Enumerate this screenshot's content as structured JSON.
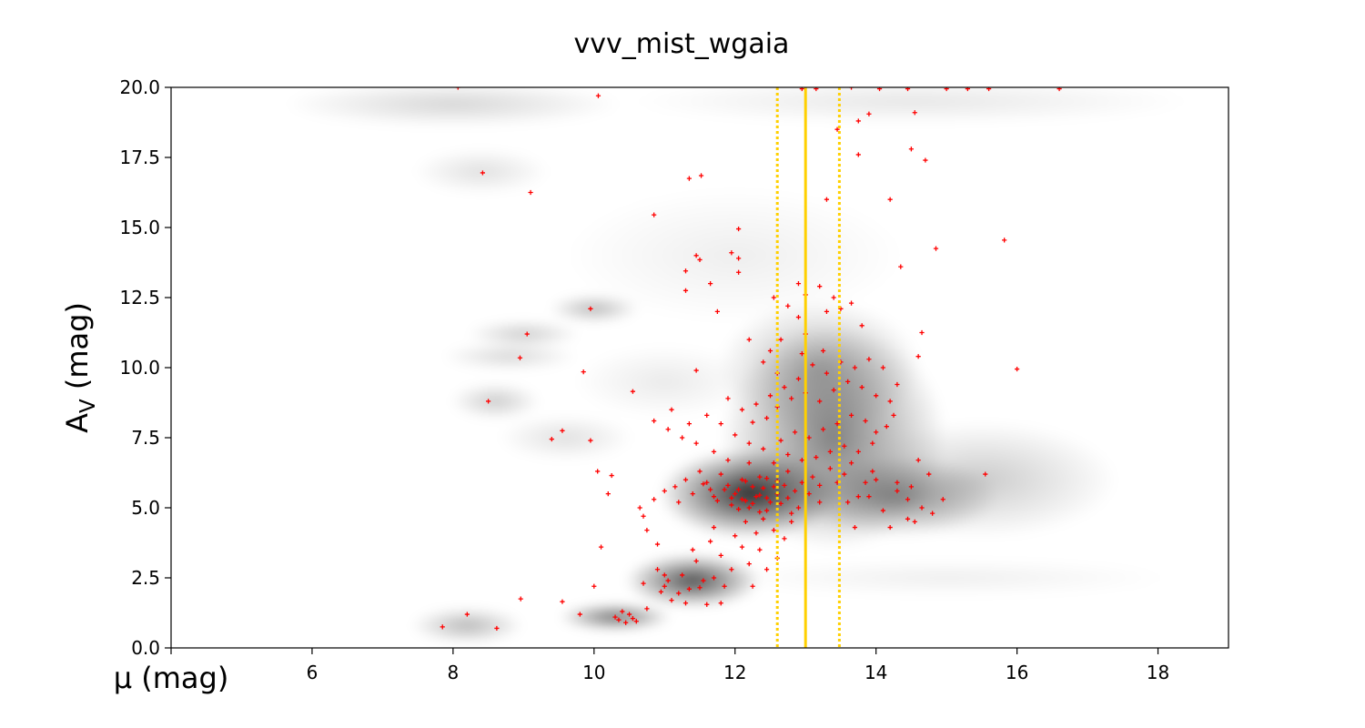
{
  "chart_data": {
    "type": "scatter",
    "title": "vvv_mist_wgaia",
    "xlabel": "μ (mag)",
    "ylabel": "A_V (mag)",
    "xlim": [
      4,
      19
    ],
    "ylim": [
      0,
      20
    ],
    "x_ticks": [
      4,
      6,
      8,
      10,
      12,
      14,
      16,
      18
    ],
    "x_tick_labels": [
      "",
      "6",
      "8",
      "10",
      "12",
      "14",
      "16",
      "18"
    ],
    "y_ticks": [
      0,
      2.5,
      5,
      7.5,
      10,
      12.5,
      15,
      17.5,
      20
    ],
    "y_tick_labels": [
      "0.0",
      "2.5",
      "5.0",
      "7.5",
      "10.0",
      "12.5",
      "15.0",
      "17.5",
      "20.0"
    ],
    "grid": false,
    "background_density": {
      "colormap": "greys",
      "blobs": [
        {
          "x": 12.2,
          "y": 5.5,
          "sx": 0.8,
          "sy": 1.0,
          "w": 1.0
        },
        {
          "x": 11.4,
          "y": 2.4,
          "sx": 0.6,
          "sy": 0.6,
          "w": 0.85
        },
        {
          "x": 13.4,
          "y": 7.5,
          "sx": 1.0,
          "sy": 2.5,
          "w": 0.6
        },
        {
          "x": 14.3,
          "y": 5.4,
          "sx": 0.9,
          "sy": 0.9,
          "w": 0.5
        },
        {
          "x": 13.2,
          "y": 10.0,
          "sx": 0.9,
          "sy": 1.5,
          "w": 0.35
        },
        {
          "x": 10.3,
          "y": 1.1,
          "sx": 0.5,
          "sy": 0.3,
          "w": 0.7
        },
        {
          "x": 8.2,
          "y": 0.8,
          "sx": 0.5,
          "sy": 0.4,
          "w": 0.35
        },
        {
          "x": 10.0,
          "y": 12.1,
          "sx": 0.4,
          "sy": 0.3,
          "w": 0.35
        },
        {
          "x": 9.0,
          "y": 11.2,
          "sx": 0.5,
          "sy": 0.3,
          "w": 0.25
        },
        {
          "x": 8.8,
          "y": 10.4,
          "sx": 0.6,
          "sy": 0.3,
          "w": 0.2
        },
        {
          "x": 8.6,
          "y": 8.8,
          "sx": 0.4,
          "sy": 0.4,
          "w": 0.25
        },
        {
          "x": 15.5,
          "y": 6.0,
          "sx": 1.2,
          "sy": 1.3,
          "w": 0.25
        },
        {
          "x": 8.0,
          "y": 19.4,
          "sx": 1.5,
          "sy": 0.5,
          "w": 0.2
        },
        {
          "x": 8.4,
          "y": 17.0,
          "sx": 0.6,
          "sy": 0.5,
          "w": 0.15
        },
        {
          "x": 14.5,
          "y": 19.5,
          "sx": 2.5,
          "sy": 0.5,
          "w": 0.12
        },
        {
          "x": 12.0,
          "y": 14.0,
          "sx": 1.5,
          "sy": 1.5,
          "w": 0.08
        },
        {
          "x": 15.0,
          "y": 2.5,
          "sx": 2.0,
          "sy": 0.4,
          "w": 0.08
        },
        {
          "x": 9.6,
          "y": 7.5,
          "sx": 0.6,
          "sy": 0.5,
          "w": 0.15
        },
        {
          "x": 11.0,
          "y": 9.5,
          "sx": 0.8,
          "sy": 0.8,
          "w": 0.1
        }
      ]
    },
    "reference_lines": [
      {
        "x": 13.0,
        "style": "solid",
        "color": "#FFD000"
      },
      {
        "x": 12.6,
        "style": "dotted",
        "color": "#FFD000"
      },
      {
        "x": 13.48,
        "style": "dotted",
        "color": "#FFD000"
      }
    ],
    "points_color": "#FF0000",
    "points_marker": "+",
    "points": [
      [
        7.85,
        0.75
      ],
      [
        8.2,
        1.2
      ],
      [
        8.62,
        0.7
      ],
      [
        8.96,
        1.75
      ],
      [
        9.55,
        1.65
      ],
      [
        9.8,
        1.2
      ],
      [
        10.0,
        2.2
      ],
      [
        10.1,
        3.6
      ],
      [
        10.3,
        1.1
      ],
      [
        10.35,
        1.0
      ],
      [
        10.4,
        1.3
      ],
      [
        10.45,
        0.9
      ],
      [
        10.5,
        1.2
      ],
      [
        10.55,
        1.05
      ],
      [
        10.6,
        0.95
      ],
      [
        8.07,
        20.0
      ],
      [
        10.06,
        19.7
      ],
      [
        8.42,
        16.95
      ],
      [
        9.1,
        16.25
      ],
      [
        10.85,
        15.45
      ],
      [
        11.35,
        16.75
      ],
      [
        11.52,
        16.85
      ],
      [
        12.05,
        14.95
      ],
      [
        11.45,
        14.0
      ],
      [
        11.5,
        13.85
      ],
      [
        11.3,
        13.45
      ],
      [
        11.3,
        12.75
      ],
      [
        11.75,
        12.0
      ],
      [
        11.65,
        13.0
      ],
      [
        11.95,
        14.1
      ],
      [
        12.05,
        13.9
      ],
      [
        12.05,
        13.4
      ],
      [
        9.95,
        12.1
      ],
      [
        9.05,
        11.2
      ],
      [
        8.95,
        10.35
      ],
      [
        9.85,
        9.85
      ],
      [
        8.5,
        8.8
      ],
      [
        9.4,
        7.45
      ],
      [
        9.55,
        7.75
      ],
      [
        9.95,
        7.4
      ],
      [
        10.05,
        6.3
      ],
      [
        10.25,
        6.15
      ],
      [
        10.2,
        5.5
      ],
      [
        10.55,
        9.15
      ],
      [
        11.45,
        9.9
      ],
      [
        14.2,
        16.0
      ],
      [
        13.3,
        16.0
      ],
      [
        13.45,
        18.5
      ],
      [
        13.75,
        18.8
      ],
      [
        13.9,
        19.05
      ],
      [
        14.55,
        19.1
      ],
      [
        13.75,
        17.6
      ],
      [
        14.5,
        17.8
      ],
      [
        14.7,
        17.4
      ],
      [
        14.45,
        19.95
      ],
      [
        14.05,
        19.95
      ],
      [
        13.65,
        20.0
      ],
      [
        13.15,
        19.95
      ],
      [
        15.0,
        19.95
      ],
      [
        15.3,
        19.95
      ],
      [
        15.6,
        19.95
      ],
      [
        16.6,
        19.95
      ],
      [
        12.95,
        19.95
      ],
      [
        14.85,
        14.25
      ],
      [
        15.82,
        14.55
      ],
      [
        14.35,
        13.6
      ],
      [
        16.0,
        9.95
      ],
      [
        15.55,
        6.2
      ],
      [
        14.65,
        11.25
      ],
      [
        14.6,
        10.4
      ],
      [
        13.2,
        12.9
      ],
      [
        13.0,
        12.6
      ],
      [
        12.9,
        13.0
      ],
      [
        13.4,
        12.5
      ],
      [
        13.65,
        12.3
      ],
      [
        12.75,
        12.2
      ],
      [
        12.9,
        11.8
      ],
      [
        12.55,
        12.5
      ],
      [
        13.3,
        12.0
      ],
      [
        13.5,
        12.1
      ],
      [
        12.2,
        11.0
      ],
      [
        12.5,
        10.6
      ],
      [
        12.65,
        11.0
      ],
      [
        13.0,
        11.2
      ],
      [
        13.8,
        11.5
      ],
      [
        14.6,
        6.7
      ],
      [
        14.75,
        6.2
      ],
      [
        14.65,
        5.0
      ],
      [
        14.95,
        5.3
      ],
      [
        14.8,
        4.8
      ],
      [
        14.2,
        4.3
      ],
      [
        13.7,
        4.3
      ],
      [
        14.45,
        4.6
      ],
      [
        14.3,
        5.9
      ],
      [
        14.0,
        6.0
      ],
      [
        14.45,
        5.3
      ],
      [
        14.1,
        4.9
      ],
      [
        14.55,
        4.5
      ],
      [
        13.9,
        5.4
      ],
      [
        13.6,
        5.2
      ],
      [
        14.3,
        5.6
      ],
      [
        14.5,
        5.75
      ],
      [
        10.65,
        5.0
      ],
      [
        10.75,
        4.2
      ],
      [
        10.9,
        3.7
      ],
      [
        10.7,
        2.3
      ],
      [
        10.95,
        2.0
      ],
      [
        11.1,
        1.7
      ],
      [
        11.3,
        1.6
      ],
      [
        11.6,
        1.55
      ],
      [
        11.8,
        1.6
      ],
      [
        10.75,
        1.4
      ],
      [
        10.9,
        2.8
      ],
      [
        11.0,
        2.2
      ],
      [
        11.2,
        1.95
      ],
      [
        11.35,
        2.1
      ],
      [
        11.5,
        2.15
      ],
      [
        11.05,
        2.4
      ],
      [
        11.25,
        2.6
      ],
      [
        11.7,
        2.5
      ],
      [
        11.95,
        2.8
      ],
      [
        12.2,
        3.0
      ],
      [
        12.35,
        3.5
      ],
      [
        12.6,
        3.2
      ],
      [
        12.45,
        2.8
      ],
      [
        11.85,
        2.2
      ],
      [
        11.55,
        2.4
      ],
      [
        11.0,
        2.6
      ],
      [
        11.45,
        3.1
      ],
      [
        11.8,
        3.3
      ],
      [
        12.1,
        3.6
      ],
      [
        12.3,
        4.1
      ],
      [
        12.55,
        4.2
      ],
      [
        12.4,
        4.6
      ],
      [
        12.0,
        4.0
      ],
      [
        11.65,
        3.8
      ],
      [
        11.4,
        3.5
      ],
      [
        11.7,
        4.3
      ],
      [
        12.15,
        4.5
      ],
      [
        12.7,
        3.9
      ],
      [
        12.8,
        4.5
      ],
      [
        12.25,
        2.2
      ],
      [
        10.7,
        4.7
      ],
      [
        10.85,
        5.3
      ],
      [
        11.0,
        5.6
      ],
      [
        11.2,
        5.2
      ],
      [
        11.4,
        5.5
      ],
      [
        11.6,
        5.9
      ],
      [
        11.8,
        6.2
      ],
      [
        11.9,
        5.8
      ],
      [
        12.0,
        5.5
      ],
      [
        12.1,
        5.3
      ],
      [
        12.2,
        5.0
      ],
      [
        12.3,
        5.4
      ],
      [
        12.4,
        5.7
      ],
      [
        12.5,
        5.2
      ],
      [
        12.6,
        5.5
      ],
      [
        12.7,
        5.8
      ],
      [
        12.1,
        6.0
      ],
      [
        11.95,
        5.1
      ],
      [
        11.7,
        5.4
      ],
      [
        11.5,
        6.3
      ],
      [
        11.3,
        6.0
      ],
      [
        11.15,
        5.75
      ],
      [
        12.45,
        4.9
      ],
      [
        12.6,
        5.95
      ],
      [
        12.35,
        6.1
      ],
      [
        12.75,
        6.3
      ],
      [
        12.85,
        5.6
      ],
      [
        12.95,
        5.9
      ],
      [
        13.1,
        6.1
      ],
      [
        13.2,
        5.8
      ],
      [
        13.35,
        6.4
      ],
      [
        13.45,
        5.9
      ],
      [
        13.55,
        6.2
      ],
      [
        13.65,
        6.6
      ],
      [
        13.75,
        5.4
      ],
      [
        13.85,
        5.9
      ],
      [
        13.95,
        6.3
      ],
      [
        13.2,
        5.2
      ],
      [
        13.05,
        5.5
      ],
      [
        12.9,
        5.0
      ],
      [
        12.8,
        4.8
      ],
      [
        12.55,
        6.6
      ],
      [
        12.2,
        6.6
      ],
      [
        11.9,
        6.7
      ],
      [
        11.7,
        7.0
      ],
      [
        11.45,
        7.3
      ],
      [
        11.25,
        7.5
      ],
      [
        11.05,
        7.8
      ],
      [
        10.85,
        8.1
      ],
      [
        11.1,
        8.5
      ],
      [
        11.35,
        8.0
      ],
      [
        11.6,
        8.3
      ],
      [
        11.8,
        8.0
      ],
      [
        12.0,
        7.6
      ],
      [
        12.2,
        7.3
      ],
      [
        12.4,
        7.1
      ],
      [
        12.65,
        7.4
      ],
      [
        12.85,
        7.7
      ],
      [
        13.05,
        7.5
      ],
      [
        13.25,
        7.8
      ],
      [
        13.45,
        8.0
      ],
      [
        13.65,
        8.3
      ],
      [
        13.85,
        8.1
      ],
      [
        14.0,
        7.7
      ],
      [
        14.15,
        7.9
      ],
      [
        14.25,
        8.3
      ],
      [
        13.95,
        7.3
      ],
      [
        13.75,
        7.0
      ],
      [
        13.55,
        7.2
      ],
      [
        13.35,
        7.0
      ],
      [
        13.15,
        6.8
      ],
      [
        12.95,
        6.7
      ],
      [
        12.75,
        6.9
      ],
      [
        12.6,
        8.6
      ],
      [
        12.8,
        8.9
      ],
      [
        13.0,
        9.1
      ],
      [
        13.2,
        8.8
      ],
      [
        13.4,
        9.2
      ],
      [
        13.6,
        9.5
      ],
      [
        13.8,
        9.3
      ],
      [
        14.0,
        9.0
      ],
      [
        14.2,
        8.8
      ],
      [
        13.3,
        9.8
      ],
      [
        13.1,
        10.1
      ],
      [
        12.9,
        9.6
      ],
      [
        12.7,
        9.3
      ],
      [
        12.5,
        9.0
      ],
      [
        12.3,
        8.7
      ],
      [
        12.1,
        8.5
      ],
      [
        11.9,
        8.9
      ],
      [
        13.5,
        10.2
      ],
      [
        13.7,
        10.0
      ],
      [
        13.9,
        10.3
      ],
      [
        14.1,
        10.0
      ],
      [
        13.25,
        10.6
      ],
      [
        12.95,
        10.5
      ],
      [
        12.6,
        9.8
      ],
      [
        12.4,
        10.2
      ],
      [
        14.3,
        9.4
      ],
      [
        12.45,
        8.2
      ],
      [
        12.25,
        8.05
      ],
      [
        11.95,
        5.35
      ],
      [
        12.05,
        5.65
      ],
      [
        12.15,
        5.25
      ],
      [
        12.25,
        5.75
      ],
      [
        12.35,
        5.45
      ],
      [
        12.05,
        4.95
      ],
      [
        11.85,
        5.65
      ],
      [
        12.45,
        5.35
      ],
      [
        12.55,
        5.75
      ],
      [
        12.25,
        5.15
      ],
      [
        11.75,
        5.25
      ],
      [
        11.65,
        5.65
      ],
      [
        12.65,
        5.15
      ],
      [
        12.35,
        4.85
      ],
      [
        12.15,
        5.95
      ],
      [
        12.45,
        6.05
      ],
      [
        11.55,
        5.85
      ],
      [
        12.75,
        5.35
      ]
    ]
  }
}
